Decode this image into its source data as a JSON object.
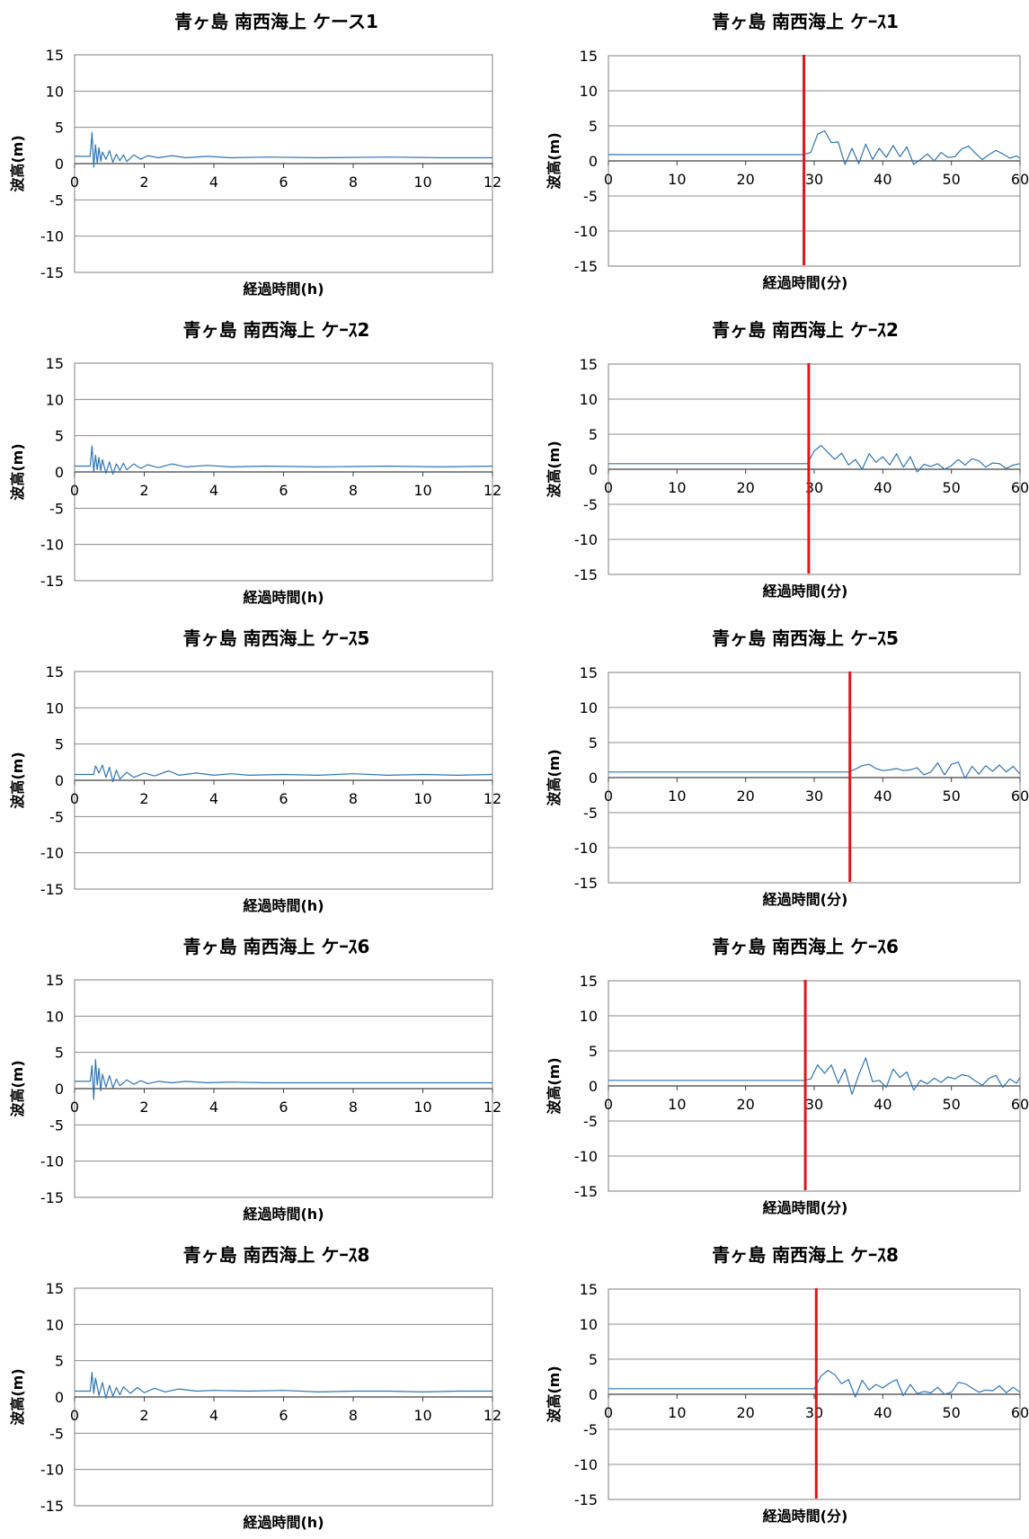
{
  "colors": {
    "series": "#2E75B6",
    "marker": "#E0161B",
    "grid": "#8C8C8C",
    "frame": "#7F7F7F",
    "text": "#000000"
  },
  "chart_data": [
    {
      "type": "line",
      "panel": "left",
      "title": "青ヶ島 南西海上 ケース1",
      "xlabel": "経過時間(h)",
      "ylabel": "波高(m)",
      "xlim": [
        0,
        12
      ],
      "ylim": [
        -15,
        15
      ],
      "xticks": [
        "0",
        "2",
        "4",
        "6",
        "8",
        "10",
        "12"
      ],
      "yticks": [
        "15",
        "10",
        "5",
        "0",
        "-5",
        "-10",
        "-15"
      ],
      "grid": "horizontal",
      "marker_x": null,
      "series": [
        {
          "x": [
            0,
            0.45,
            0.5,
            0.55,
            0.6,
            0.65,
            0.7,
            0.75,
            0.8,
            0.9,
            1.0,
            1.1,
            1.2,
            1.3,
            1.4,
            1.5,
            1.7,
            1.9,
            2.1,
            2.4,
            2.8,
            3.2,
            3.8,
            4.5,
            5.5,
            7,
            9,
            10.5,
            12
          ],
          "y": [
            1.0,
            1.0,
            4.3,
            -0.5,
            2.6,
            0.0,
            2.2,
            0.3,
            1.6,
            0.6,
            1.8,
            0.2,
            1.3,
            0.4,
            1.2,
            0.3,
            1.2,
            0.6,
            1.1,
            0.8,
            1.1,
            0.8,
            1.0,
            0.8,
            0.9,
            0.8,
            0.9,
            0.8,
            0.8
          ]
        }
      ]
    },
    {
      "type": "line",
      "panel": "right",
      "title": "青ヶ島 南西海上 ケｰｽ1",
      "xlabel": "経過時間(分)",
      "ylabel": "波高(m)",
      "xlim": [
        0,
        60
      ],
      "ylim": [
        -15,
        15
      ],
      "xticks": [
        "0",
        "10",
        "20",
        "30",
        "40",
        "50",
        "60"
      ],
      "yticks": [
        "15",
        "10",
        "5",
        "0",
        "-5",
        "-10",
        "-15"
      ],
      "grid": "horizontal",
      "marker_x": 28.5,
      "series": [
        {
          "x": [
            0,
            10,
            20,
            28.5,
            29.5,
            30.5,
            31.5,
            32.5,
            33.5,
            34.5,
            35.5,
            36.5,
            37.5,
            38.5,
            39.5,
            40.5,
            41.5,
            42.5,
            43.5,
            44.5,
            45.5,
            46.5,
            47.5,
            48.5,
            49.5,
            50.5,
            51.5,
            52.5,
            53.5,
            54.5,
            55.5,
            56.5,
            57.5,
            58.5,
            59.5,
            60
          ],
          "y": [
            0.9,
            0.9,
            0.9,
            0.9,
            1.2,
            3.8,
            4.3,
            2.6,
            2.7,
            -0.5,
            1.8,
            -0.4,
            2.4,
            0.2,
            1.8,
            0.5,
            2.2,
            0.6,
            2.0,
            -0.5,
            0.2,
            1.0,
            0.0,
            1.2,
            0.5,
            0.6,
            1.7,
            2.1,
            1.1,
            0.2,
            0.9,
            1.5,
            1.0,
            0.4,
            0.7,
            0.4
          ]
        }
      ]
    },
    {
      "type": "line",
      "panel": "left",
      "title": "青ヶ島 南西海上 ケｰｽ2",
      "xlabel": "経過時間(h)",
      "ylabel": "波高(m)",
      "xlim": [
        0,
        12
      ],
      "ylim": [
        -15,
        15
      ],
      "xticks": [
        "0",
        "2",
        "4",
        "6",
        "8",
        "10",
        "12"
      ],
      "yticks": [
        "15",
        "10",
        "5",
        "0",
        "-5",
        "-10",
        "-15"
      ],
      "grid": "horizontal",
      "marker_x": null,
      "series": [
        {
          "x": [
            0,
            0.45,
            0.5,
            0.55,
            0.6,
            0.65,
            0.7,
            0.75,
            0.8,
            0.9,
            1.0,
            1.1,
            1.2,
            1.3,
            1.4,
            1.5,
            1.7,
            1.9,
            2.1,
            2.4,
            2.8,
            3.2,
            3.8,
            4.5,
            5.5,
            7,
            9,
            10.5,
            12
          ],
          "y": [
            0.8,
            0.8,
            3.6,
            0.0,
            2.3,
            0.3,
            2.0,
            0.2,
            1.7,
            -0.2,
            1.4,
            -0.3,
            1.1,
            0.2,
            1.2,
            0.3,
            1.1,
            0.5,
            1.0,
            0.6,
            1.1,
            0.7,
            0.9,
            0.7,
            0.8,
            0.7,
            0.8,
            0.7,
            0.8
          ]
        }
      ]
    },
    {
      "type": "line",
      "panel": "right",
      "title": "青ヶ島 南西海上 ケｰｽ2",
      "xlabel": "経過時間(分)",
      "ylabel": "波高(m)",
      "xlim": [
        0,
        60
      ],
      "ylim": [
        -15,
        15
      ],
      "xticks": [
        "0",
        "10",
        "20",
        "30",
        "40",
        "50",
        "60"
      ],
      "yticks": [
        "15",
        "10",
        "5",
        "0",
        "-5",
        "-10",
        "-15"
      ],
      "grid": "horizontal",
      "marker_x": 29.2,
      "series": [
        {
          "x": [
            0,
            10,
            20,
            29,
            30,
            31,
            32,
            33,
            34,
            35,
            36,
            37,
            38,
            39,
            40,
            41,
            42,
            43,
            44,
            45,
            46,
            47,
            48,
            49,
            50,
            51,
            52,
            53,
            54,
            55,
            56,
            57,
            58,
            59,
            60
          ],
          "y": [
            0.8,
            0.8,
            0.8,
            0.8,
            2.6,
            3.4,
            2.4,
            1.4,
            2.3,
            0.6,
            1.4,
            0.0,
            2.2,
            1.0,
            1.8,
            0.6,
            2.2,
            0.3,
            1.8,
            -0.4,
            0.7,
            0.4,
            0.8,
            0.0,
            0.5,
            1.4,
            0.6,
            1.5,
            1.2,
            0.3,
            0.9,
            0.8,
            0.1,
            0.6,
            0.8
          ]
        }
      ]
    },
    {
      "type": "line",
      "panel": "left",
      "title": "青ヶ島 南西海上 ケｰｽ5",
      "xlabel": "経過時間(h)",
      "ylabel": "波高(m)",
      "xlim": [
        0,
        12
      ],
      "ylim": [
        -15,
        15
      ],
      "xticks": [
        "0",
        "2",
        "4",
        "6",
        "8",
        "10",
        "12"
      ],
      "yticks": [
        "15",
        "10",
        "5",
        "0",
        "-5",
        "-10",
        "-15"
      ],
      "grid": "horizontal",
      "marker_x": null,
      "series": [
        {
          "x": [
            0,
            0.55,
            0.6,
            0.7,
            0.8,
            0.9,
            1.0,
            1.1,
            1.2,
            1.3,
            1.5,
            1.7,
            2.0,
            2.3,
            2.7,
            3.0,
            3.5,
            4.0,
            4.5,
            5,
            6,
            7,
            8,
            9,
            10,
            11,
            12
          ],
          "y": [
            0.8,
            0.8,
            2.0,
            1.0,
            2.1,
            0.4,
            1.8,
            -0.2,
            1.4,
            0.2,
            1.1,
            0.4,
            1.0,
            0.6,
            1.3,
            0.7,
            1.0,
            0.7,
            0.9,
            0.7,
            0.8,
            0.7,
            0.9,
            0.7,
            0.8,
            0.7,
            0.8
          ]
        }
      ]
    },
    {
      "type": "line",
      "panel": "right",
      "title": "青ヶ島 南西海上 ケｰｽ5",
      "xlabel": "経過時間(分)",
      "ylabel": "波高(m)",
      "xlim": [
        0,
        60
      ],
      "ylim": [
        -15,
        15
      ],
      "xticks": [
        "0",
        "10",
        "20",
        "30",
        "40",
        "50",
        "60"
      ],
      "yticks": [
        "15",
        "10",
        "5",
        "0",
        "-5",
        "-10",
        "-15"
      ],
      "grid": "horizontal",
      "marker_x": 35.2,
      "series": [
        {
          "x": [
            0,
            10,
            20,
            30,
            35,
            36,
            37,
            38,
            39,
            40,
            41,
            42,
            43,
            44,
            45,
            46,
            47,
            48,
            49,
            50,
            51,
            52,
            53,
            54,
            55,
            56,
            57,
            58,
            59,
            60
          ],
          "y": [
            0.8,
            0.8,
            0.8,
            0.8,
            0.8,
            1.2,
            1.7,
            1.9,
            1.3,
            1.0,
            1.1,
            1.3,
            1.0,
            1.1,
            1.4,
            0.4,
            0.8,
            2.1,
            0.4,
            1.9,
            2.2,
            -0.1,
            1.6,
            0.5,
            1.7,
            0.9,
            1.8,
            0.8,
            1.6,
            0.5
          ]
        }
      ]
    },
    {
      "type": "line",
      "panel": "left",
      "title": "青ヶ島 南西海上 ケｰｽ6",
      "xlabel": "経過時間(h)",
      "ylabel": "波高(m)",
      "xlim": [
        0,
        12
      ],
      "ylim": [
        -15,
        15
      ],
      "xticks": [
        "0",
        "2",
        "4",
        "6",
        "8",
        "10",
        "12"
      ],
      "yticks": [
        "15",
        "10",
        "5",
        "0",
        "-5",
        "-10",
        "-15"
      ],
      "grid": "horizontal",
      "marker_x": null,
      "series": [
        {
          "x": [
            0,
            0.45,
            0.5,
            0.55,
            0.6,
            0.65,
            0.7,
            0.75,
            0.8,
            0.9,
            1.0,
            1.1,
            1.2,
            1.3,
            1.5,
            1.7,
            1.9,
            2.1,
            2.4,
            2.8,
            3.2,
            3.8,
            4.5,
            5.5,
            7,
            9,
            10.5,
            12
          ],
          "y": [
            1.0,
            1.0,
            3.2,
            -1.5,
            4.0,
            0.5,
            2.8,
            -0.3,
            2.0,
            0.2,
            1.8,
            0.1,
            1.3,
            0.4,
            1.2,
            0.6,
            1.1,
            0.7,
            1.0,
            0.8,
            1.0,
            0.8,
            0.9,
            0.8,
            0.8,
            0.8,
            0.8,
            0.8
          ]
        }
      ]
    },
    {
      "type": "line",
      "panel": "right",
      "title": "青ヶ島 南西海上 ケｰｽ6",
      "xlabel": "経過時間(分)",
      "ylabel": "波高(m)",
      "xlim": [
        0,
        60
      ],
      "ylim": [
        -15,
        15
      ],
      "xticks": [
        "0",
        "10",
        "20",
        "30",
        "40",
        "50",
        "60"
      ],
      "yticks": [
        "15",
        "10",
        "5",
        "0",
        "-5",
        "-10",
        "-15"
      ],
      "grid": "horizontal",
      "marker_x": 28.7,
      "series": [
        {
          "x": [
            0,
            10,
            20,
            28.5,
            29.5,
            30.5,
            31.5,
            32.5,
            33.5,
            34.5,
            35.5,
            36.5,
            37.5,
            38.5,
            39.5,
            40.5,
            41.5,
            42.5,
            43.5,
            44.5,
            45.5,
            46.5,
            47.5,
            48.5,
            49.5,
            50.5,
            51.5,
            52.5,
            53.5,
            54.5,
            55.5,
            56.5,
            57.5,
            58.5,
            59.5,
            60
          ],
          "y": [
            0.8,
            0.8,
            0.8,
            0.8,
            1.0,
            3.0,
            1.8,
            3.0,
            0.4,
            2.4,
            -1.2,
            1.6,
            4.0,
            0.6,
            0.8,
            -0.2,
            2.4,
            1.2,
            2.0,
            -0.6,
            0.8,
            0.3,
            1.1,
            0.5,
            1.3,
            1.0,
            1.6,
            1.4,
            0.7,
            0.1,
            1.1,
            1.5,
            -0.2,
            1.0,
            0.4,
            1.2
          ]
        }
      ]
    },
    {
      "type": "line",
      "panel": "left",
      "title": "青ヶ島 南西海上 ケｰｽ8",
      "xlabel": "経過時間(h)",
      "ylabel": "波高(m)",
      "xlim": [
        0,
        12
      ],
      "ylim": [
        -15,
        15
      ],
      "xticks": [
        "0",
        "2",
        "4",
        "6",
        "8",
        "10",
        "12"
      ],
      "yticks": [
        "15",
        "10",
        "5",
        "0",
        "-5",
        "-10",
        "-15"
      ],
      "grid": "horizontal",
      "marker_x": null,
      "series": [
        {
          "x": [
            0,
            0.45,
            0.5,
            0.55,
            0.6,
            0.7,
            0.8,
            0.9,
            1.0,
            1.1,
            1.2,
            1.3,
            1.4,
            1.6,
            1.8,
            2.0,
            2.3,
            2.6,
            3.0,
            3.5,
            4.0,
            5,
            6,
            7,
            8,
            9,
            10,
            11,
            12
          ],
          "y": [
            0.8,
            0.8,
            3.4,
            0.5,
            2.6,
            0.2,
            2.0,
            -0.2,
            1.6,
            0.1,
            1.3,
            0.3,
            1.4,
            0.5,
            1.3,
            0.6,
            1.2,
            0.7,
            1.1,
            0.8,
            0.9,
            0.8,
            0.9,
            0.7,
            0.8,
            0.8,
            0.7,
            0.8,
            0.8
          ]
        }
      ]
    },
    {
      "type": "line",
      "panel": "right",
      "title": "青ヶ島 南西海上 ケｰｽ8",
      "xlabel": "経過時間(分)",
      "ylabel": "波高(m)",
      "xlim": [
        0,
        60
      ],
      "ylim": [
        -15,
        15
      ],
      "xticks": [
        "0",
        "10",
        "20",
        "30",
        "40",
        "50",
        "60"
      ],
      "yticks": [
        "15",
        "10",
        "5",
        "0",
        "-5",
        "-10",
        "-15"
      ],
      "grid": "horizontal",
      "marker_x": 30.3,
      "series": [
        {
          "x": [
            0,
            10,
            20,
            30,
            31,
            32,
            33,
            34,
            35,
            36,
            37,
            38,
            39,
            40,
            41,
            42,
            43,
            44,
            45,
            46,
            47,
            48,
            49,
            50,
            51,
            52,
            53,
            54,
            55,
            56,
            57,
            58,
            59,
            60
          ],
          "y": [
            0.8,
            0.8,
            0.8,
            0.8,
            2.6,
            3.4,
            2.8,
            1.5,
            2.1,
            -0.4,
            2.0,
            0.6,
            1.4,
            0.9,
            1.6,
            2.1,
            -0.2,
            1.4,
            0.1,
            0.4,
            0.2,
            1.0,
            0.0,
            0.3,
            1.7,
            1.5,
            0.9,
            0.3,
            0.6,
            0.5,
            1.2,
            0.2,
            1.0,
            0.3
          ]
        }
      ]
    }
  ]
}
